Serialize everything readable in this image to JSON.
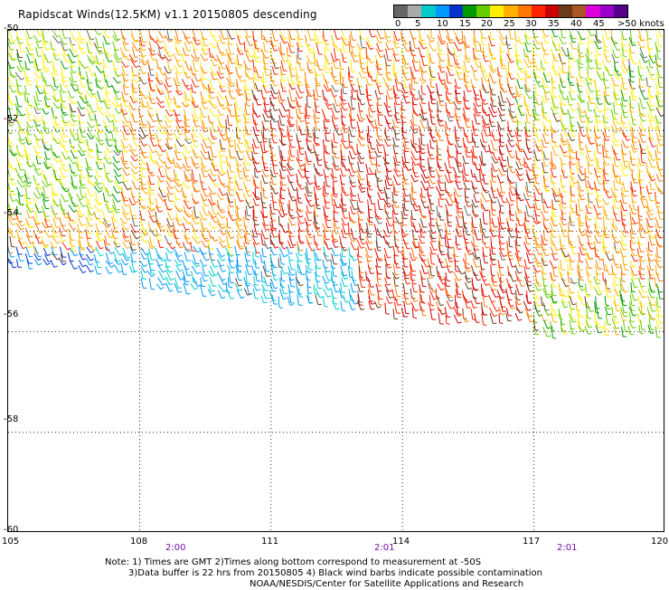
{
  "title": "Rapidscat Winds(12.5KM) v1.1 20150805 descending",
  "legend": {
    "labels": [
      "0",
      "5",
      "10",
      "15",
      "20",
      "25",
      "30",
      "35",
      "40",
      "45",
      ">50 knots"
    ],
    "colors": [
      "#666666",
      "#aaaaaa",
      "#00cccc",
      "#0099ff",
      "#0033cc",
      "#009900",
      "#66cc00",
      "#ffee00",
      "#ffb000",
      "#ff7700",
      "#ff2200",
      "#cc0000",
      "#6b3a1a",
      "#aa5522",
      "#dd00dd",
      "#9900cc",
      "#550088"
    ]
  },
  "map": {
    "lat_labels": [
      "-50",
      "-52",
      "-54",
      "-56",
      "-58",
      "-60"
    ],
    "lon_labels": [
      "105",
      "108",
      "111",
      "114",
      "117",
      "120"
    ],
    "lat_range": [
      -60,
      -50
    ],
    "lon_range": [
      105,
      120
    ],
    "time_labels": [
      "2:00",
      "2:01",
      "2:01"
    ],
    "time_lons": [
      109,
      114,
      118
    ]
  },
  "notes": {
    "line1": "Note: 1) Times are GMT 2)Times along bottom correspond to measurement at -50S",
    "line2": "3)Data buffer is 22 hrs from 20150805 4) Black wind barbs indicate possible contamination",
    "line3": "NOAA/NESDIS/Center for Satellite Applications and Research"
  }
}
